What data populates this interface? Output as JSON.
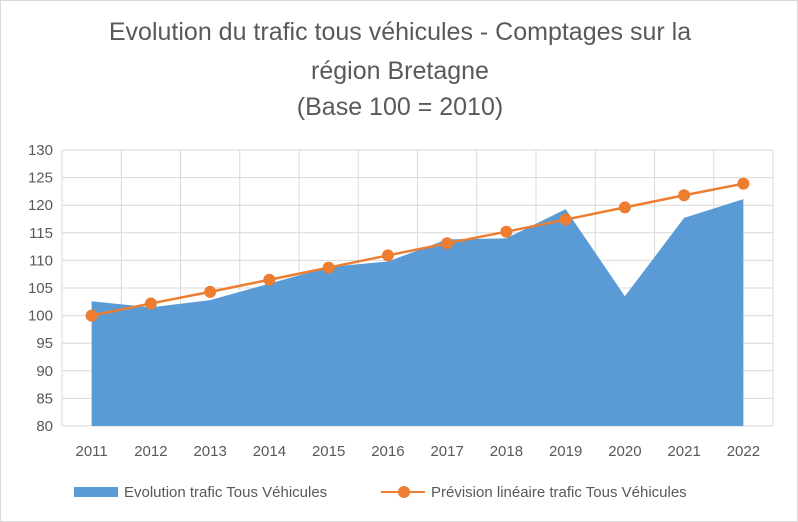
{
  "title": {
    "line1": "Evolution du trafic tous véhicules - Comptages sur la",
    "line2": "région Bretagne",
    "line3": "(Base 100 = 2010)"
  },
  "legend": {
    "area_label": "Evolution trafic Tous Véhicules",
    "line_label": "Prévision linéaire trafic Tous Véhicules"
  },
  "colors": {
    "area": "#5b9bd5",
    "line": "#ed7d31",
    "grid": "#d9d9d9",
    "text": "#595959"
  },
  "chart_data": {
    "type": "area",
    "title": "Evolution du trafic tous véhicules - Comptages sur la région Bretagne (Base 100 = 2010)",
    "xlabel": "",
    "ylabel": "",
    "categories": [
      "2011",
      "2012",
      "2013",
      "2014",
      "2015",
      "2016",
      "2017",
      "2018",
      "2019",
      "2020",
      "2021",
      "2022"
    ],
    "ylim": [
      80,
      130
    ],
    "yticks": [
      80,
      85,
      90,
      95,
      100,
      105,
      110,
      115,
      120,
      125,
      130
    ],
    "grid": true,
    "legend_position": "bottom",
    "series": [
      {
        "name": "Evolution trafic Tous Véhicules",
        "type": "area",
        "values": [
          102.6,
          101.5,
          102.8,
          105.8,
          108.8,
          109.8,
          113.8,
          114.0,
          119.3,
          103.5,
          117.7,
          121.1
        ]
      },
      {
        "name": "Prévision linéaire trafic Tous Véhicules",
        "type": "line",
        "values": [
          100.0,
          102.2,
          104.3,
          106.5,
          108.7,
          110.9,
          113.1,
          115.2,
          117.4,
          119.6,
          121.8,
          123.9
        ]
      }
    ]
  }
}
